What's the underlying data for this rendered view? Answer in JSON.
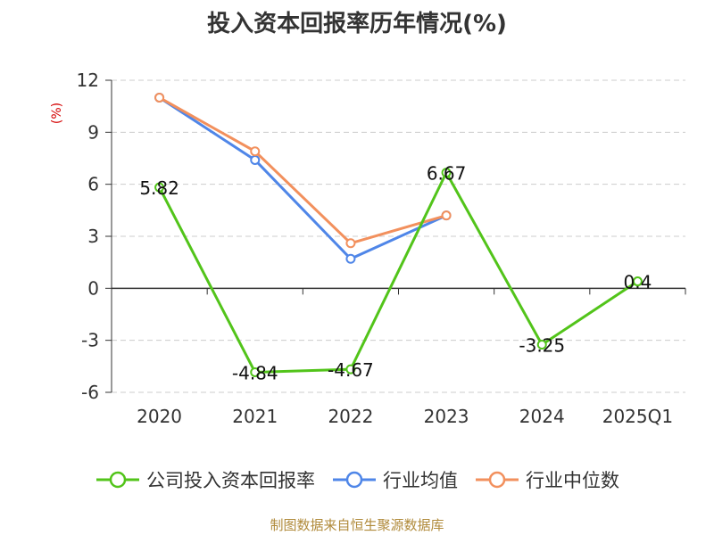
{
  "chart_data": {
    "type": "line",
    "title": "投入资本回报率历年情况(%)",
    "ylabel": "(%)",
    "categories": [
      "2020",
      "2021",
      "2022",
      "2023",
      "2024",
      "2025Q1"
    ],
    "ylim": [
      -6,
      12
    ],
    "yticks": [
      12,
      9,
      6,
      3,
      0,
      -3,
      -6
    ],
    "grid": true,
    "legend_position": "bottom",
    "series": [
      {
        "name": "公司投入资本回报率",
        "color": "#52c41a",
        "values": [
          5.82,
          -4.84,
          -4.67,
          6.67,
          -3.25,
          0.4
        ],
        "labels": [
          "5.82",
          "-4.84",
          "-4.67",
          "6.67",
          "-3.25",
          "0.4"
        ]
      },
      {
        "name": "行业均值",
        "color": "#4f86e8",
        "values": [
          11.0,
          7.4,
          1.7,
          4.2,
          null,
          null
        ]
      },
      {
        "name": "行业中位数",
        "color": "#f2905d",
        "values": [
          11.0,
          7.9,
          2.6,
          4.2,
          null,
          null
        ]
      }
    ]
  },
  "source": "制图数据来自恒生聚源数据库"
}
